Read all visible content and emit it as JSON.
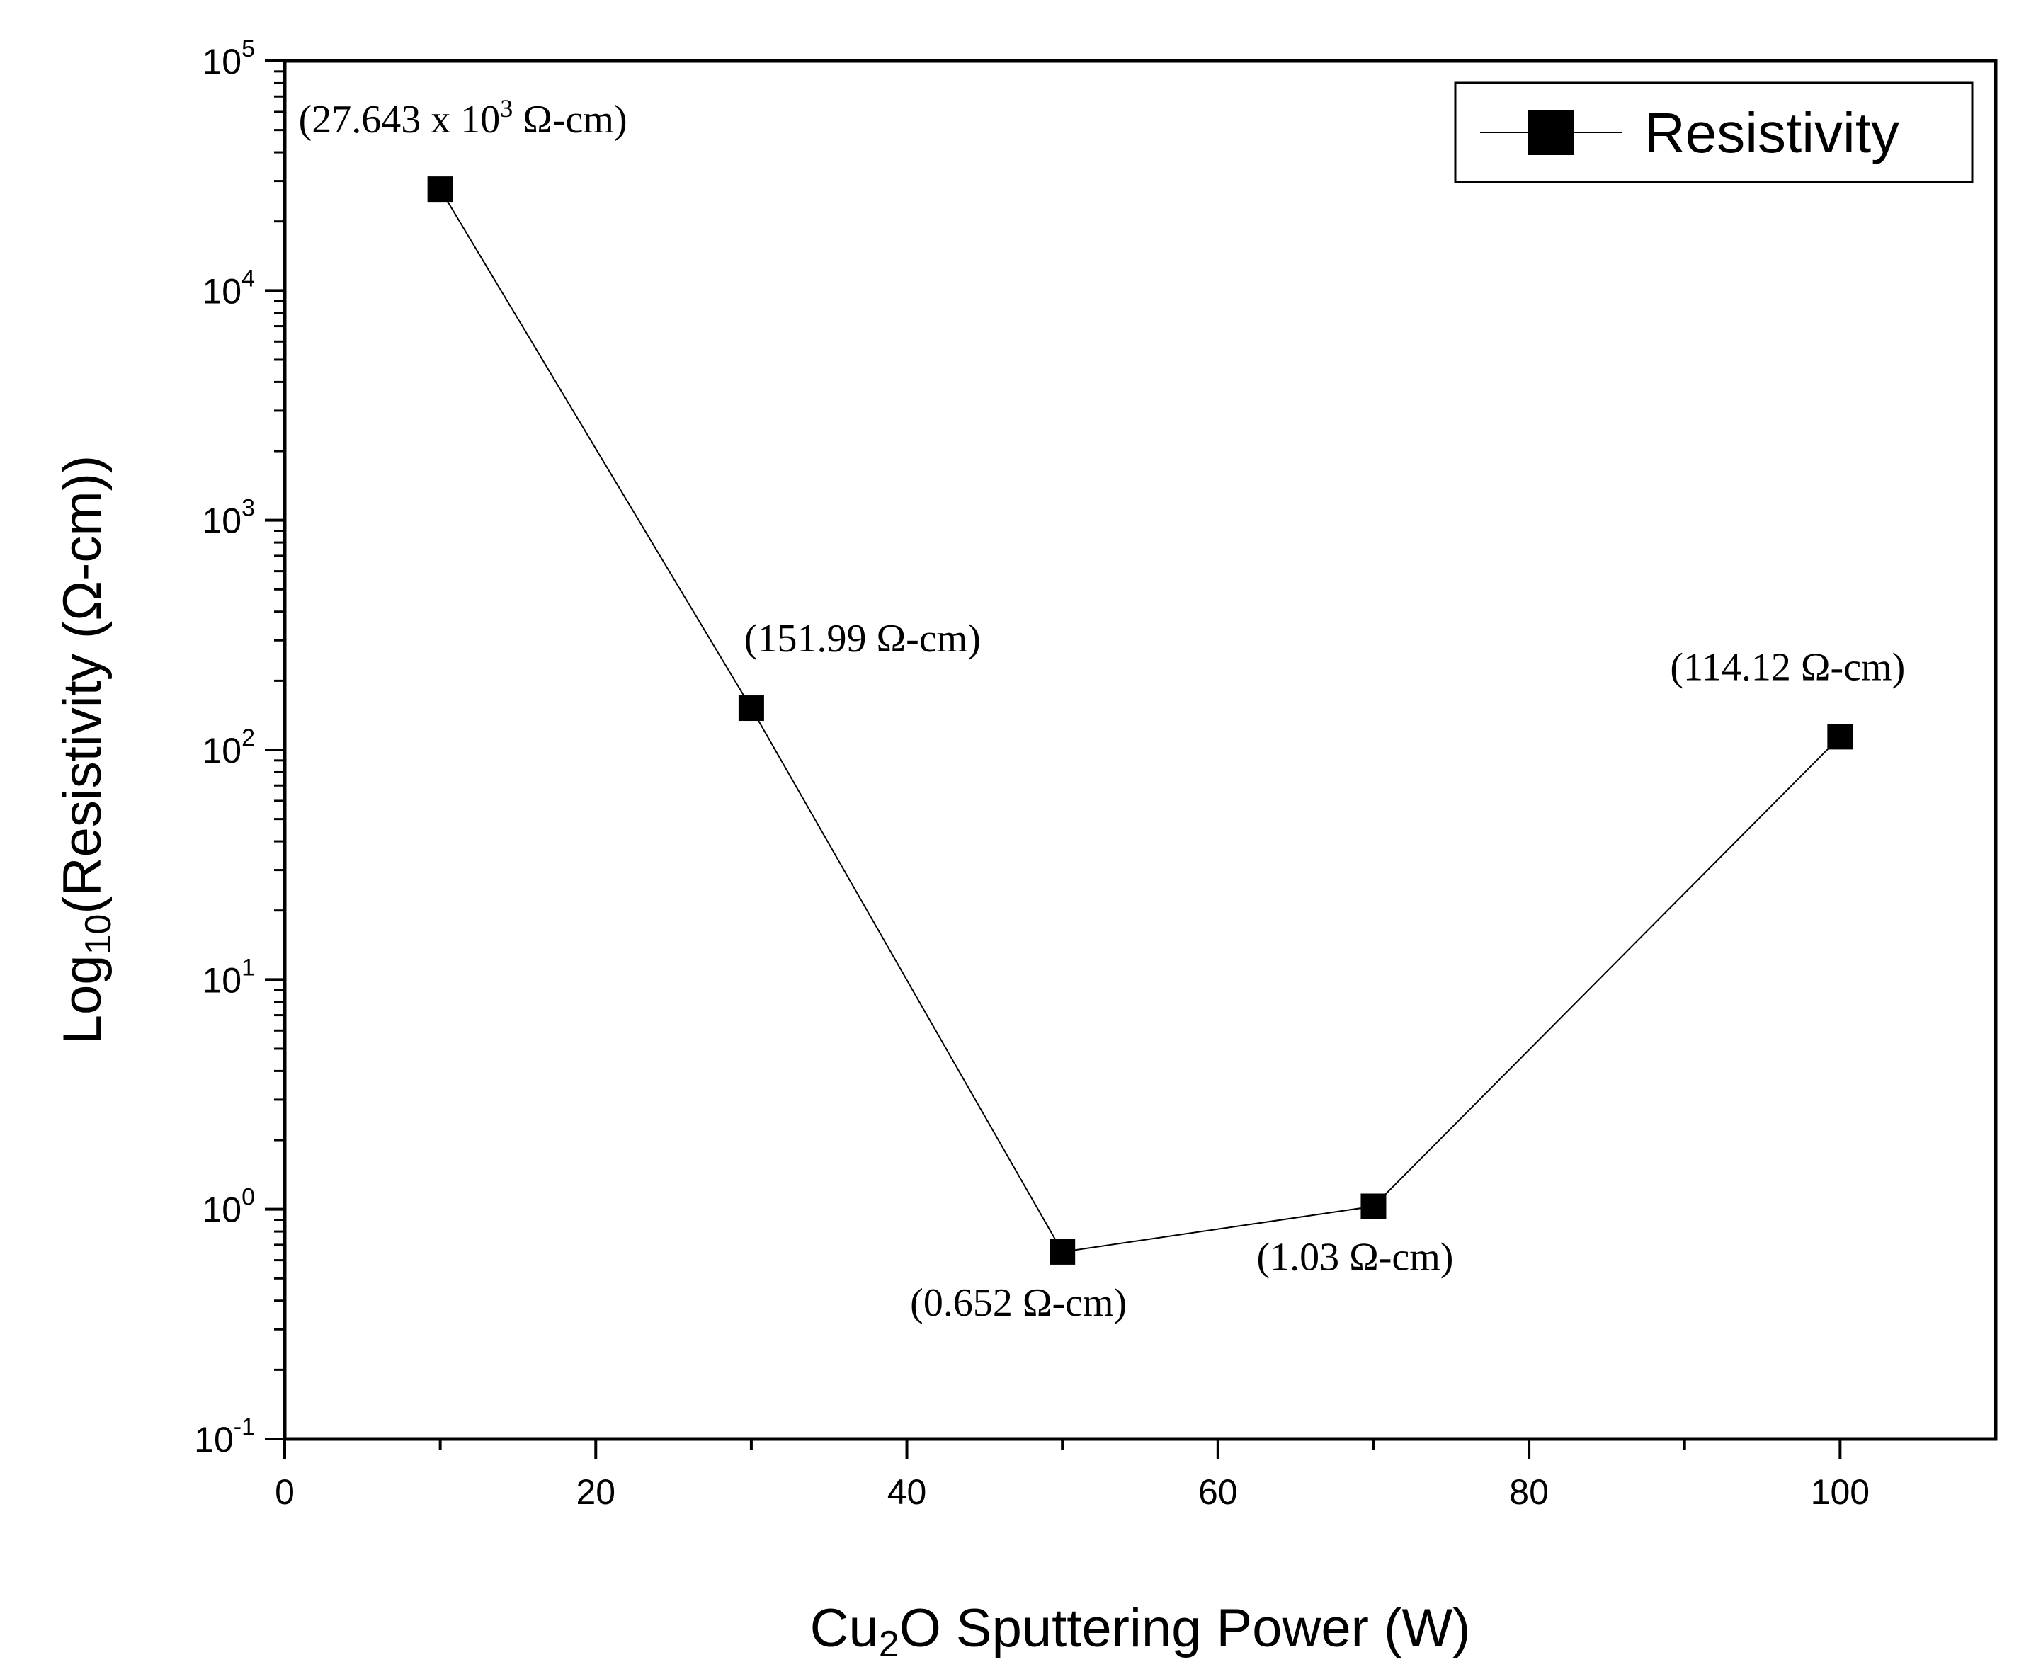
{
  "chart_data": {
    "type": "line",
    "title": "",
    "xlabel": {
      "prefix": "Cu",
      "sub": "2",
      "suffix": "O Sputtering Power (W)"
    },
    "ylabel": {
      "prefix": "Log",
      "sub": "10",
      "suffix": "(Resistivity (Ω-cm))"
    },
    "xlim": [
      0,
      110
    ],
    "ylim": [
      0.1,
      100000
    ],
    "yscale": "log",
    "x_ticks": [
      0,
      20,
      40,
      60,
      80,
      100
    ],
    "y_ticks": [
      {
        "base": "10",
        "exp": "-1",
        "value": 0.1
      },
      {
        "base": "10",
        "exp": "0",
        "value": 1
      },
      {
        "base": "10",
        "exp": "1",
        "value": 10
      },
      {
        "base": "10",
        "exp": "2",
        "value": 100
      },
      {
        "base": "10",
        "exp": "3",
        "value": 1000
      },
      {
        "base": "10",
        "exp": "4",
        "value": 10000
      },
      {
        "base": "10",
        "exp": "5",
        "value": 100000
      }
    ],
    "legend": {
      "position": "top-right",
      "entries": [
        "Resistivity"
      ]
    },
    "series": [
      {
        "name": "Resistivity",
        "x": [
          10,
          30,
          50,
          70,
          100
        ],
        "y": [
          27643,
          151.99,
          0.652,
          1.03,
          114.12
        ],
        "labels": [
          {
            "text": "(27.643 x 10",
            "sup": "3",
            "tail": " Ω-cm)"
          },
          {
            "text": "(151.99 Ω-cm)",
            "sup": "",
            "tail": ""
          },
          {
            "text": "(0.652 Ω-cm)",
            "sup": "",
            "tail": ""
          },
          {
            "text": "(1.03 Ω-cm)",
            "sup": "",
            "tail": ""
          },
          {
            "text": "(114.12 Ω-cm)",
            "sup": "",
            "tail": ""
          }
        ]
      }
    ]
  }
}
